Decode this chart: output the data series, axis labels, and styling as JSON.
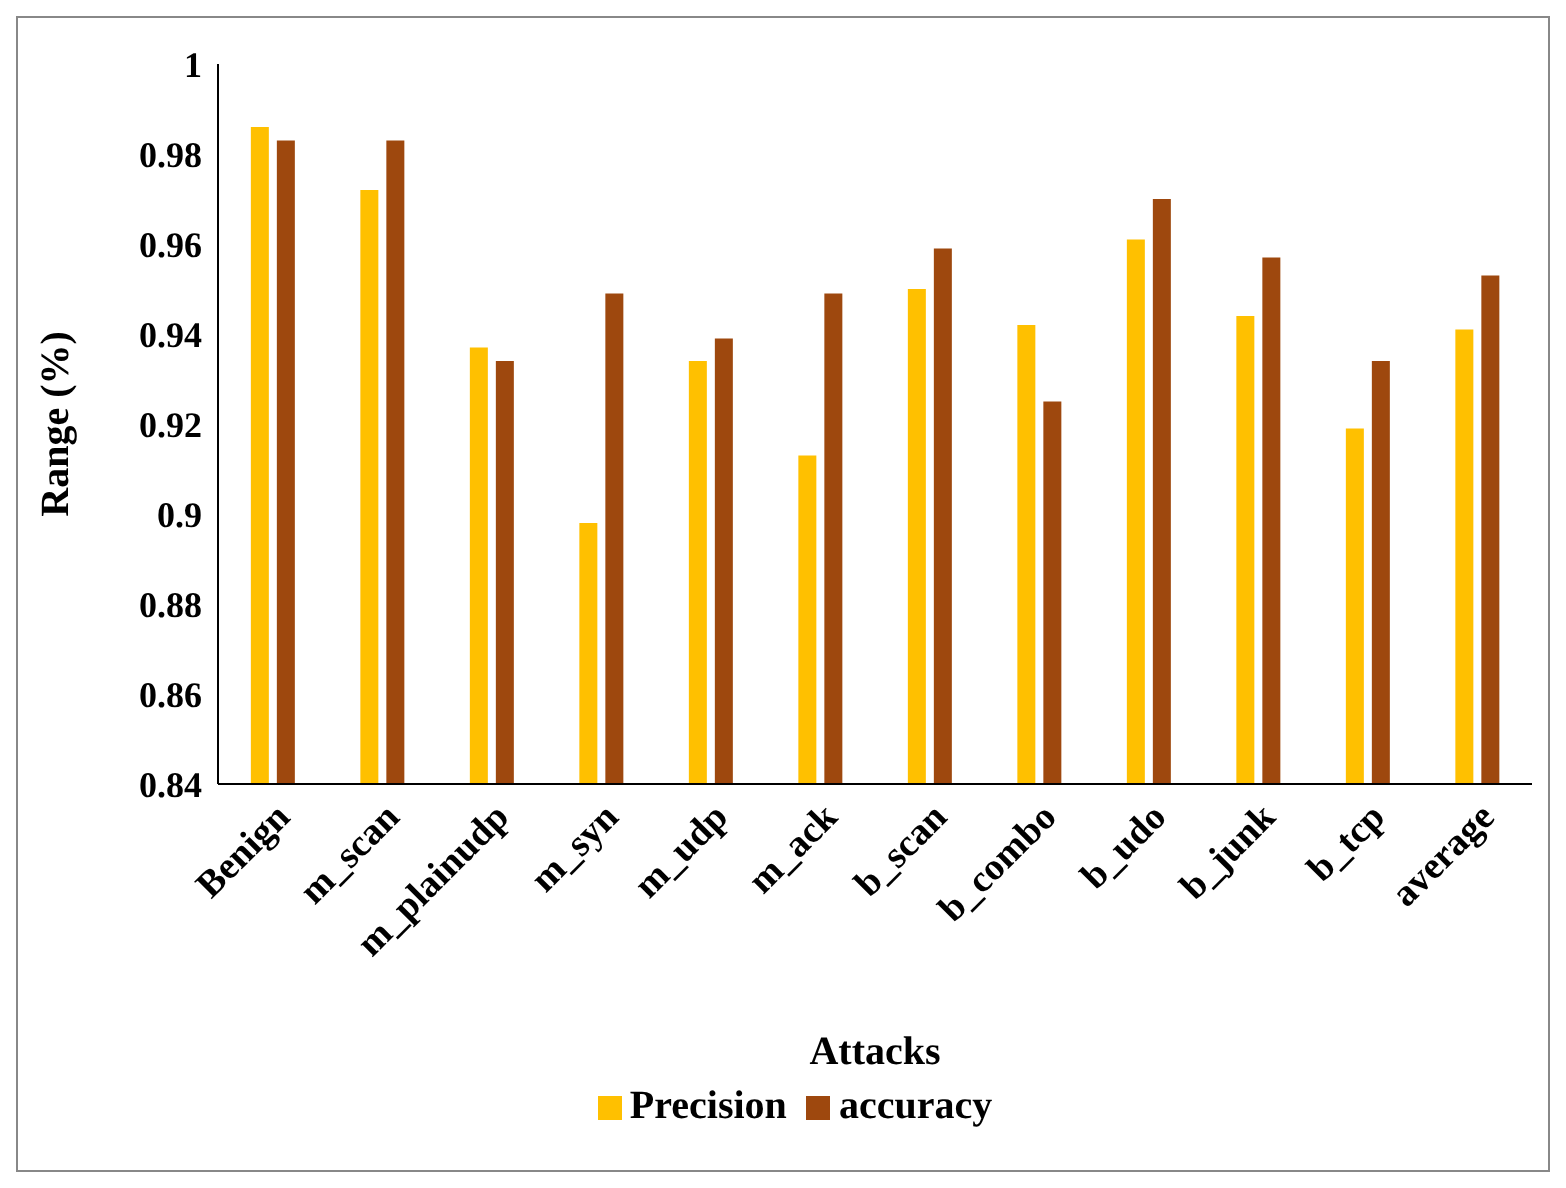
{
  "chart_data": {
    "type": "bar",
    "xlabel": "Attacks",
    "ylabel": "Range (%)",
    "categories": [
      "Benign",
      "m_scan",
      "m_plainudp",
      "m_syn",
      "m_udp",
      "m_ack",
      "b_scan",
      "b_combo",
      "b_udo",
      "b_junk",
      "b_tcp",
      "average"
    ],
    "series": [
      {
        "name": "Precision",
        "color": "#ffc000",
        "values": [
          0.986,
          0.972,
          0.937,
          0.898,
          0.934,
          0.913,
          0.95,
          0.942,
          0.961,
          0.944,
          0.919,
          0.941
        ]
      },
      {
        "name": "accuracy",
        "color": "#9e480e",
        "values": [
          0.983,
          0.983,
          0.934,
          0.949,
          0.939,
          0.949,
          0.959,
          0.925,
          0.97,
          0.957,
          0.934,
          0.953
        ]
      }
    ],
    "ylim": [
      0.84,
      1
    ],
    "yticks": [
      0.84,
      0.86,
      0.88,
      0.9,
      0.92,
      0.94,
      0.96,
      0.98,
      1
    ],
    "grid": false,
    "legend": "bottom"
  }
}
